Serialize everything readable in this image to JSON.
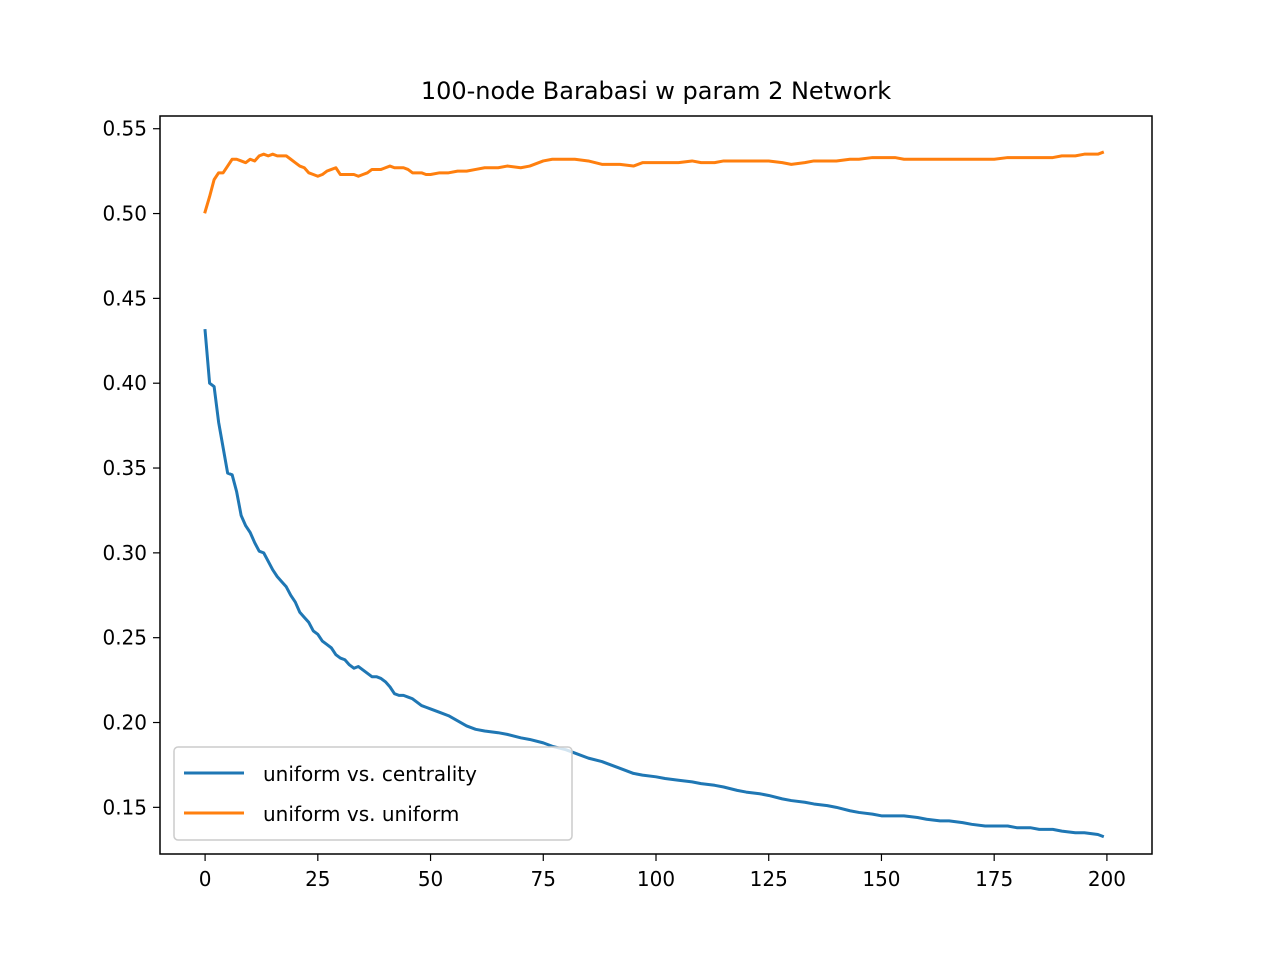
{
  "chart_data": {
    "type": "line",
    "title": "100-node Barabasi w param 2 Network",
    "xlabel": "",
    "ylabel": "",
    "xlim": [
      -10,
      210
    ],
    "ylim": [
      0.1225,
      0.5575
    ],
    "xticks": [
      0,
      25,
      50,
      75,
      100,
      125,
      150,
      175,
      200
    ],
    "xtick_labels": [
      "0",
      "25",
      "50",
      "75",
      "100",
      "125",
      "150",
      "175",
      "200"
    ],
    "yticks": [
      0.15,
      0.2,
      0.25,
      0.3,
      0.35,
      0.4,
      0.45,
      0.5,
      0.55
    ],
    "ytick_labels": [
      "0.15",
      "0.20",
      "0.25",
      "0.30",
      "0.35",
      "0.40",
      "0.45",
      "0.50",
      "0.55"
    ],
    "grid": false,
    "legend_position": "lower-left",
    "series": [
      {
        "name": "uniform vs. centrality",
        "color": "#1f77b4",
        "x": [
          0,
          1,
          2,
          3,
          4,
          5,
          6,
          7,
          8,
          9,
          10,
          11,
          12,
          13,
          14,
          15,
          16,
          17,
          18,
          19,
          20,
          21,
          22,
          23,
          24,
          25,
          26,
          27,
          28,
          29,
          30,
          31,
          32,
          33,
          34,
          35,
          36,
          37,
          38,
          39,
          40,
          41,
          42,
          43,
          44,
          45,
          46,
          47,
          48,
          49,
          50,
          52,
          54,
          56,
          58,
          60,
          62,
          65,
          67,
          70,
          72,
          75,
          77,
          80,
          82,
          85,
          88,
          90,
          92,
          95,
          97,
          100,
          102,
          105,
          108,
          110,
          113,
          115,
          118,
          120,
          123,
          125,
          128,
          130,
          133,
          135,
          138,
          140,
          143,
          145,
          148,
          150,
          153,
          155,
          158,
          160,
          163,
          165,
          168,
          170,
          173,
          175,
          178,
          180,
          183,
          185,
          188,
          190,
          193,
          195,
          198,
          199
        ],
        "y": [
          0.431,
          0.4,
          0.398,
          0.377,
          0.362,
          0.347,
          0.346,
          0.336,
          0.322,
          0.316,
          0.312,
          0.306,
          0.301,
          0.3,
          0.295,
          0.29,
          0.286,
          0.283,
          0.28,
          0.275,
          0.271,
          0.265,
          0.262,
          0.259,
          0.254,
          0.252,
          0.248,
          0.246,
          0.244,
          0.24,
          0.238,
          0.237,
          0.234,
          0.232,
          0.233,
          0.231,
          0.229,
          0.227,
          0.227,
          0.226,
          0.224,
          0.221,
          0.217,
          0.216,
          0.216,
          0.215,
          0.214,
          0.212,
          0.21,
          0.209,
          0.208,
          0.206,
          0.204,
          0.201,
          0.198,
          0.196,
          0.195,
          0.194,
          0.193,
          0.191,
          0.19,
          0.188,
          0.186,
          0.184,
          0.182,
          0.179,
          0.177,
          0.175,
          0.173,
          0.17,
          0.169,
          0.168,
          0.167,
          0.166,
          0.165,
          0.164,
          0.163,
          0.162,
          0.16,
          0.159,
          0.158,
          0.157,
          0.155,
          0.154,
          0.153,
          0.152,
          0.151,
          0.15,
          0.148,
          0.147,
          0.146,
          0.145,
          0.145,
          0.145,
          0.144,
          0.143,
          0.142,
          0.142,
          0.141,
          0.14,
          0.139,
          0.139,
          0.139,
          0.138,
          0.138,
          0.137,
          0.137,
          0.136,
          0.135,
          0.135,
          0.134,
          0.133
        ]
      },
      {
        "name": "uniform vs. uniform",
        "color": "#ff7f0e",
        "x": [
          0,
          1,
          2,
          3,
          4,
          5,
          6,
          7,
          8,
          9,
          10,
          11,
          12,
          13,
          14,
          15,
          16,
          17,
          18,
          19,
          20,
          21,
          22,
          23,
          24,
          25,
          26,
          27,
          28,
          29,
          30,
          31,
          32,
          33,
          34,
          35,
          36,
          37,
          38,
          39,
          40,
          41,
          42,
          43,
          44,
          45,
          46,
          47,
          48,
          49,
          50,
          52,
          54,
          56,
          58,
          60,
          62,
          65,
          67,
          70,
          72,
          75,
          77,
          80,
          82,
          85,
          88,
          90,
          92,
          95,
          97,
          100,
          102,
          105,
          108,
          110,
          113,
          115,
          118,
          120,
          123,
          125,
          128,
          130,
          133,
          135,
          138,
          140,
          143,
          145,
          148,
          150,
          153,
          155,
          158,
          160,
          163,
          165,
          168,
          170,
          173,
          175,
          178,
          180,
          183,
          185,
          188,
          190,
          193,
          195,
          198,
          199
        ],
        "y": [
          0.501,
          0.51,
          0.52,
          0.524,
          0.524,
          0.528,
          0.532,
          0.532,
          0.531,
          0.53,
          0.532,
          0.531,
          0.534,
          0.535,
          0.534,
          0.535,
          0.534,
          0.534,
          0.534,
          0.532,
          0.53,
          0.528,
          0.527,
          0.524,
          0.523,
          0.522,
          0.523,
          0.525,
          0.526,
          0.527,
          0.523,
          0.523,
          0.523,
          0.523,
          0.522,
          0.523,
          0.524,
          0.526,
          0.526,
          0.526,
          0.527,
          0.528,
          0.527,
          0.527,
          0.527,
          0.526,
          0.524,
          0.524,
          0.524,
          0.523,
          0.523,
          0.524,
          0.524,
          0.525,
          0.525,
          0.526,
          0.527,
          0.527,
          0.528,
          0.527,
          0.528,
          0.531,
          0.532,
          0.532,
          0.532,
          0.531,
          0.529,
          0.529,
          0.529,
          0.528,
          0.53,
          0.53,
          0.53,
          0.53,
          0.531,
          0.53,
          0.53,
          0.531,
          0.531,
          0.531,
          0.531,
          0.531,
          0.53,
          0.529,
          0.53,
          0.531,
          0.531,
          0.531,
          0.532,
          0.532,
          0.533,
          0.533,
          0.533,
          0.532,
          0.532,
          0.532,
          0.532,
          0.532,
          0.532,
          0.532,
          0.532,
          0.532,
          0.533,
          0.533,
          0.533,
          0.533,
          0.533,
          0.534,
          0.534,
          0.535,
          0.535,
          0.536
        ]
      }
    ]
  }
}
